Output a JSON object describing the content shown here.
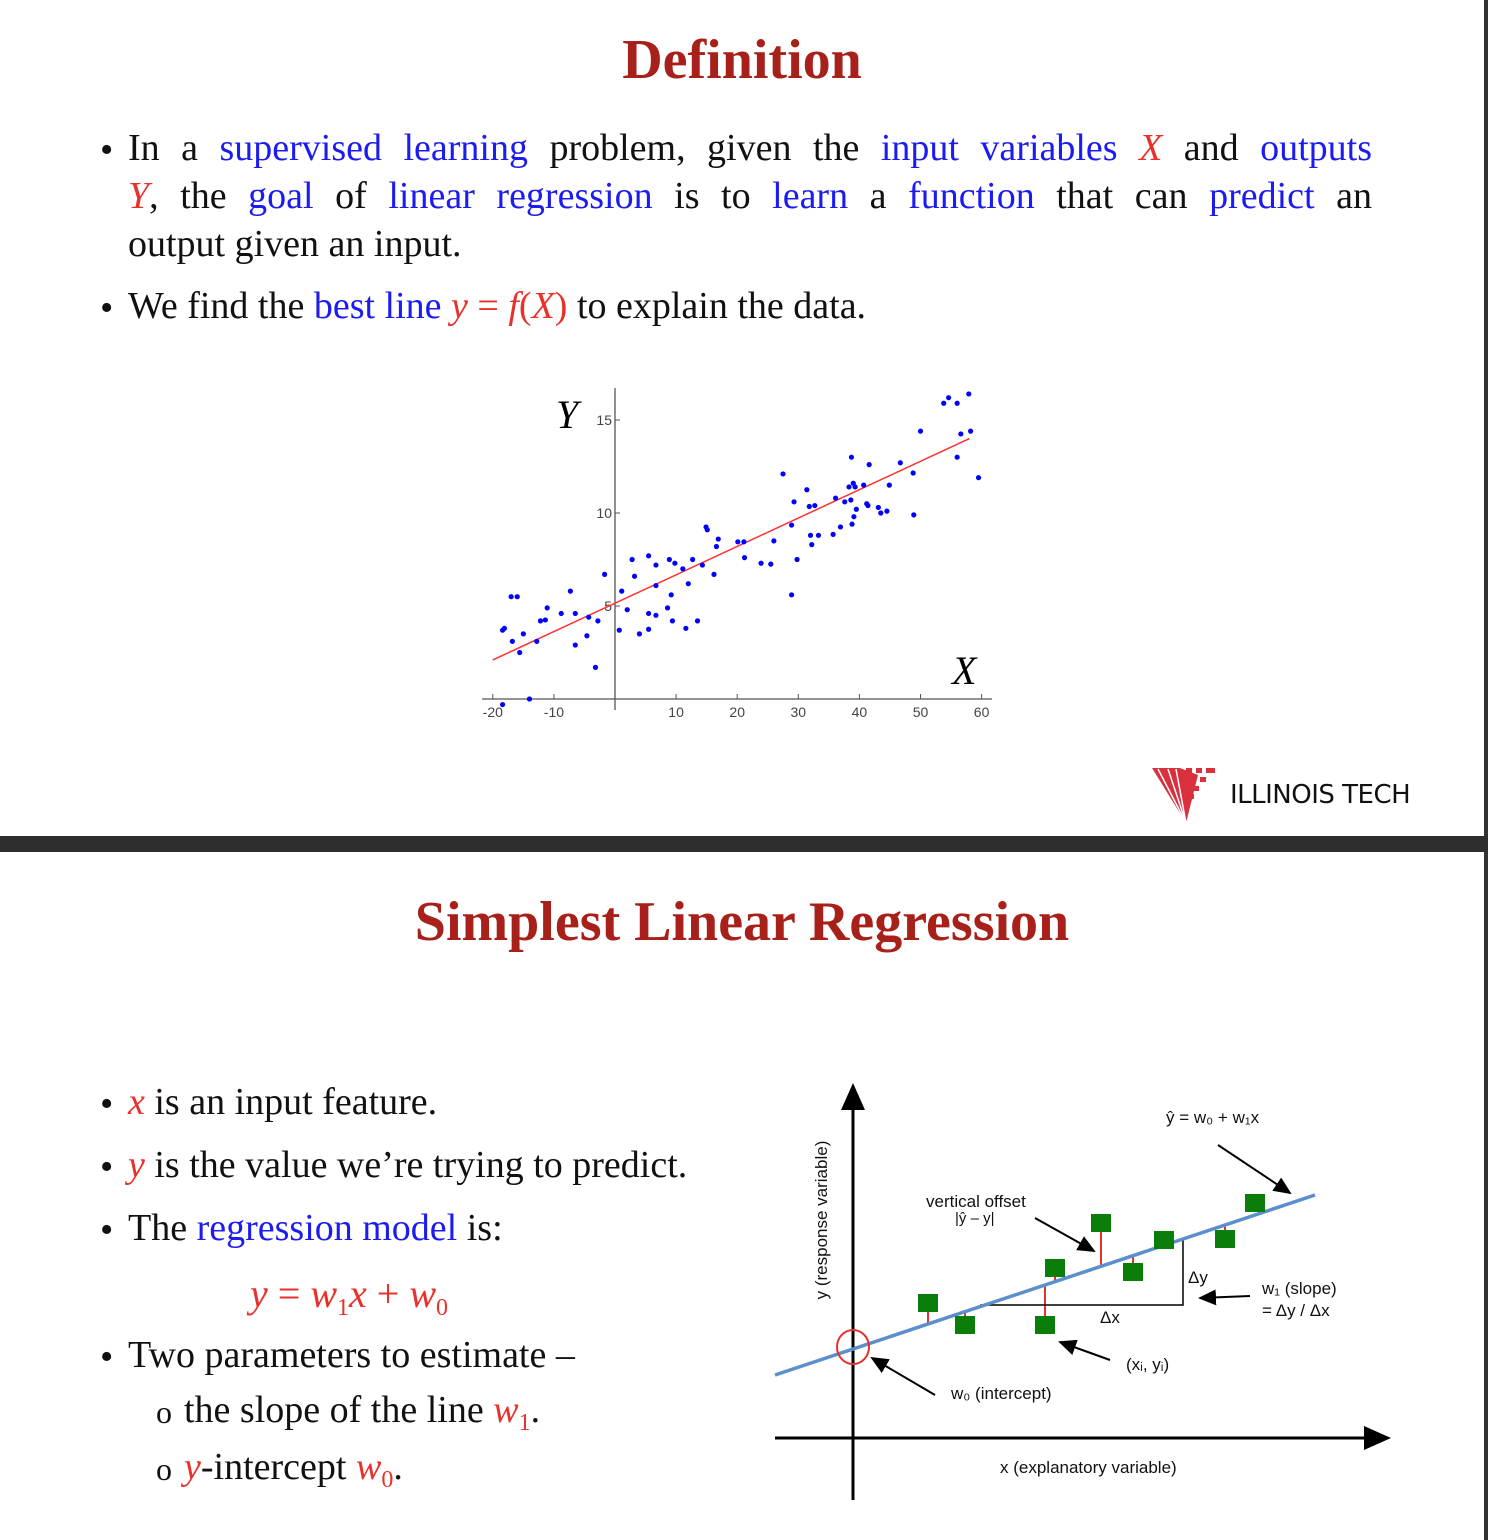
{
  "colors": {
    "title": "#a8201a",
    "highlight": "#1c1cf0",
    "math": "#e8312a",
    "separator": "#2d2d2d",
    "points": "#0000ff",
    "fit_line": "#ff3030",
    "diagram_line": "#5b8fc9",
    "diagram_points": "#0a7d0a"
  },
  "slide1": {
    "title": "Definition",
    "bullet_symbol": "•",
    "bullet1": {
      "line1": [
        {
          "t": "In a ",
          "s": "txt"
        },
        {
          "t": "supervised learning",
          "s": "blue"
        },
        {
          "t": " problem, given the ",
          "s": "txt"
        },
        {
          "t": "input variables",
          "s": "blue"
        },
        {
          "t": " X ",
          "s": "red"
        },
        {
          "t": "and ",
          "s": "txt"
        },
        {
          "t": "outputs",
          "s": "blue"
        }
      ],
      "line2": [
        {
          "t": "Y",
          "s": "red"
        },
        {
          "t": ", the ",
          "s": "txt"
        },
        {
          "t": "goal",
          "s": "blue"
        },
        {
          "t": " of ",
          "s": "txt"
        },
        {
          "t": "linear regression",
          "s": "blue"
        },
        {
          "t": " is to ",
          "s": "txt"
        },
        {
          "t": "learn",
          "s": "blue"
        },
        {
          "t": " a ",
          "s": "txt"
        },
        {
          "t": "function",
          "s": "blue"
        },
        {
          "t": " that can ",
          "s": "txt"
        },
        {
          "t": "predict",
          "s": "blue"
        },
        {
          "t": " an",
          "s": "txt"
        }
      ],
      "line3": [
        {
          "t": "output given an input.",
          "s": "txt"
        }
      ]
    },
    "bullet2": [
      {
        "t": "We find the ",
        "s": "txt"
      },
      {
        "t": "best line",
        "s": "blue"
      },
      {
        "t": " y",
        "s": "red"
      },
      {
        "t": " = ",
        "s": "redup"
      },
      {
        "t": "f",
        "s": "red"
      },
      {
        "t": "(",
        "s": "redup"
      },
      {
        "t": "X",
        "s": "red"
      },
      {
        "t": ")",
        "s": "redup"
      },
      {
        "t": " to explain the data.",
        "s": "txt"
      }
    ],
    "logo_text": "ILLINOIS TECH"
  },
  "chart_data": {
    "type": "scatter",
    "title": "",
    "xlabel": "X",
    "ylabel": "Y",
    "xlim": [
      -20,
      60
    ],
    "ylim": [
      0,
      16.5
    ],
    "xticks": [
      -20,
      -10,
      10,
      20,
      30,
      40,
      50,
      60
    ],
    "yticks": [
      5,
      10,
      15
    ],
    "grid": false,
    "fit_line": {
      "x": [
        -20,
        58
      ],
      "y": [
        2.1,
        14.0
      ]
    },
    "points": [
      [
        -18.4,
        3.7
      ],
      [
        -18.1,
        3.8
      ],
      [
        -17,
        5.5
      ],
      [
        -16,
        5.5
      ],
      [
        -16.8,
        3.1
      ],
      [
        -15.6,
        2.5
      ],
      [
        -15,
        3.5
      ],
      [
        -14,
        0
      ],
      [
        -18.4,
        -0.3
      ],
      [
        -12.8,
        3.1
      ],
      [
        -12.2,
        4.2
      ],
      [
        -11.4,
        4.25
      ],
      [
        -11.1,
        4.9
      ],
      [
        -8.8,
        4.6
      ],
      [
        -7.3,
        5.8
      ],
      [
        -6.5,
        4.6
      ],
      [
        -6.5,
        2.9
      ],
      [
        -4.6,
        3.4
      ],
      [
        -4.3,
        4.4
      ],
      [
        -3.2,
        1.7
      ],
      [
        -2.8,
        4.2
      ],
      [
        -1.7,
        6.7
      ],
      [
        0.7,
        3.7
      ],
      [
        1.1,
        5.8
      ],
      [
        2,
        4.8
      ],
      [
        2.8,
        7.5
      ],
      [
        3.2,
        6.6
      ],
      [
        4,
        3.5
      ],
      [
        5.5,
        7.7
      ],
      [
        5.5,
        4.6
      ],
      [
        5.5,
        3.75
      ],
      [
        6.7,
        7.2
      ],
      [
        6.7,
        6.1
      ],
      [
        6.7,
        4.5
      ],
      [
        8.6,
        4.9
      ],
      [
        8.9,
        7.5
      ],
      [
        9.2,
        5.6
      ],
      [
        9.4,
        4.2
      ],
      [
        9.8,
        7.3
      ],
      [
        11.1,
        7.0
      ],
      [
        11.6,
        3.8
      ],
      [
        12,
        6.2
      ],
      [
        12.7,
        7.5
      ],
      [
        13.5,
        4.2
      ],
      [
        14.3,
        7.2
      ],
      [
        14.9,
        9.25
      ],
      [
        15.1,
        9.1
      ],
      [
        16.2,
        6.7
      ],
      [
        16.6,
        8.2
      ],
      [
        16.9,
        8.6
      ],
      [
        20.1,
        8.45
      ],
      [
        21.1,
        8.45
      ],
      [
        21.2,
        7.6
      ],
      [
        23.9,
        7.3
      ],
      [
        25.5,
        7.25
      ],
      [
        26,
        8.5
      ],
      [
        27.5,
        12.1
      ],
      [
        28.9,
        9.35
      ],
      [
        28.9,
        5.6
      ],
      [
        29.3,
        10.6
      ],
      [
        29.8,
        7.5
      ],
      [
        31.4,
        11.25
      ],
      [
        31.8,
        10.35
      ],
      [
        32,
        8.8
      ],
      [
        32.2,
        8.3
      ],
      [
        32.7,
        10.4
      ],
      [
        33.3,
        8.8
      ],
      [
        35.7,
        8.85
      ],
      [
        36.1,
        10.8
      ],
      [
        36.9,
        9.25
      ],
      [
        37.6,
        10.6
      ],
      [
        38.3,
        11.4
      ],
      [
        38.6,
        10.7
      ],
      [
        38.7,
        13
      ],
      [
        38.8,
        9.4
      ],
      [
        39,
        11.6
      ],
      [
        39.1,
        9.8
      ],
      [
        39.3,
        11.4
      ],
      [
        39.5,
        10.2
      ],
      [
        40.7,
        11.5
      ],
      [
        41.2,
        10.5
      ],
      [
        41.4,
        10.4
      ],
      [
        41.6,
        12.6
      ],
      [
        43.1,
        10.3
      ],
      [
        43.5,
        10
      ],
      [
        44.5,
        10.1
      ],
      [
        44.9,
        11.5
      ],
      [
        46.7,
        12.7
      ],
      [
        48.8,
        12.15
      ],
      [
        48.9,
        9.9
      ],
      [
        50,
        14.4
      ],
      [
        53.8,
        15.9
      ],
      [
        54.6,
        16.2
      ],
      [
        56,
        15.9
      ],
      [
        56,
        13
      ],
      [
        56.6,
        14.25
      ],
      [
        57.9,
        16.4
      ],
      [
        58.2,
        14.4
      ],
      [
        59.5,
        11.9
      ]
    ]
  },
  "slide2": {
    "title": "Simplest Linear Regression",
    "bullet_symbol": "•",
    "sub_bullet_symbol": "o",
    "b1": [
      {
        "t": "x",
        "s": "red"
      },
      {
        "t": " is an input feature.",
        "s": "txt"
      }
    ],
    "b2": [
      {
        "t": "y",
        "s": "red"
      },
      {
        "t": " is the value we’re trying to predict.",
        "s": "txt"
      }
    ],
    "b3": [
      {
        "t": "The ",
        "s": "txt"
      },
      {
        "t": "regression model",
        "s": "blue"
      },
      {
        "t": " is:",
        "s": "txt"
      }
    ],
    "formula": [
      {
        "t": "y",
        "s": "red"
      },
      {
        "t": " = ",
        "s": "redup"
      },
      {
        "t": "w",
        "s": "red"
      },
      {
        "t": "1",
        "s": "red sub"
      },
      {
        "t": "x",
        "s": "red"
      },
      {
        "t": " + ",
        "s": "redup"
      },
      {
        "t": "w",
        "s": "red"
      },
      {
        "t": "0",
        "s": "red sub"
      }
    ],
    "b4": [
      {
        "t": "Two parameters to estimate –",
        "s": "txt"
      }
    ],
    "sb1": [
      {
        "t": "the slope of  the line ",
        "s": "txt"
      },
      {
        "t": "w",
        "s": "red"
      },
      {
        "t": "1",
        "s": "red sub"
      },
      {
        "t": ".",
        "s": "txt"
      }
    ],
    "sb2": [
      {
        "t": "y",
        "s": "red"
      },
      {
        "t": "-intercept ",
        "s": "txt"
      },
      {
        "t": "w",
        "s": "red"
      },
      {
        "t": "0",
        "s": "red sub"
      },
      {
        "t": ".",
        "s": "txt"
      }
    ],
    "diagram": {
      "y_axis_label": "y (response variable)",
      "x_axis_label": "x (explanatory variable)",
      "line_label": "ŷ = w₀ + w₁x",
      "offset_label": "vertical offset",
      "offset_formula": "|ŷ – y|",
      "dy": "Δy",
      "dx": "Δx",
      "slope_label": "w₁ (slope)",
      "slope_formula": "= Δy / Δx",
      "point_label": "(xᵢ, yᵢ)",
      "intercept_label": "w₀ (intercept)"
    }
  }
}
